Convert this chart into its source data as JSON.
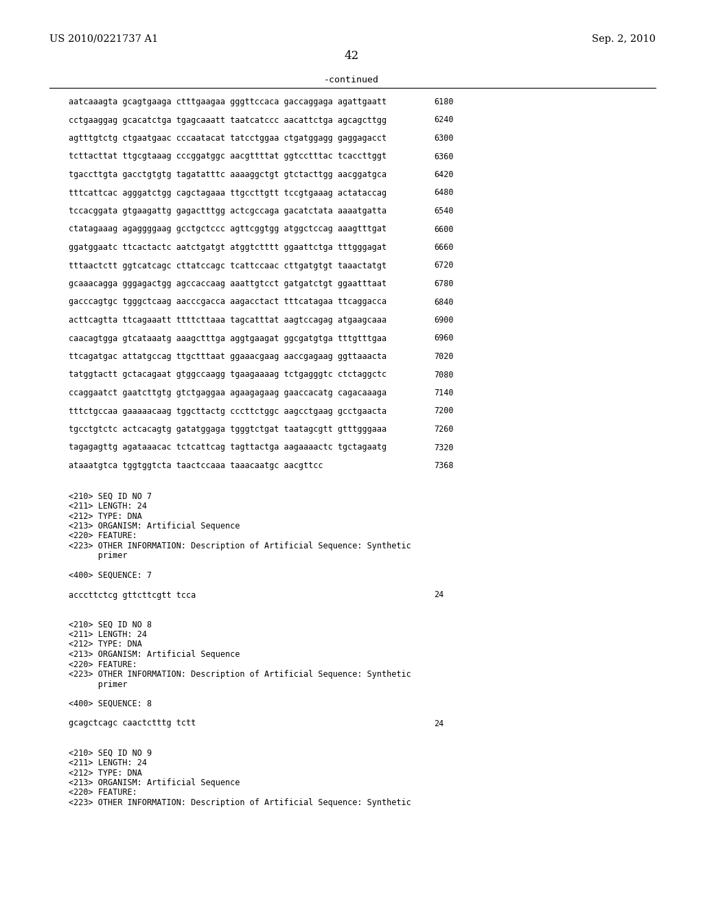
{
  "header_left": "US 2010/0221737 A1",
  "header_right": "Sep. 2, 2010",
  "page_number": "42",
  "continued_label": "-continued",
  "background_color": "#ffffff",
  "text_color": "#000000",
  "sequence_lines": [
    [
      "aatcaaagta gcagtgaaga ctttgaagaa gggttccaca gaccaggaga agattgaatt",
      "6180"
    ],
    [
      "cctgaaggag gcacatctga tgagcaaatt taatcatccc aacattctga agcagcttgg",
      "6240"
    ],
    [
      "agtttgtctg ctgaatgaac cccaatacat tatcctggaa ctgatggagg gaggagacct",
      "6300"
    ],
    [
      "tcttacttat ttgcgtaaag cccggatggc aacgttttat ggtcctttac tcaccttggt",
      "6360"
    ],
    [
      "tgaccttgta gacctgtgtg tagatatttc aaaaggctgt gtctacttgg aacggatgca",
      "6420"
    ],
    [
      "tttcattcac agggatctgg cagctagaaa ttgccttgtt tccgtgaaag actataccag",
      "6480"
    ],
    [
      "tccacggata gtgaagattg gagactttgg actcgccaga gacatctata aaaatgatta",
      "6540"
    ],
    [
      "ctatagaaag agaggggaag gcctgctccc agttcggtgg atggctccag aaagtttgat",
      "6600"
    ],
    [
      "ggatggaatc ttcactactc aatctgatgt atggtctttt ggaattctga tttgggagat",
      "6660"
    ],
    [
      "tttaactctt ggtcatcagc cttatccagc tcattccaac cttgatgtgt taaactatgt",
      "6720"
    ],
    [
      "gcaaacagga gggagactgg agccaccaag aaattgtcct gatgatctgt ggaatttaat",
      "6780"
    ],
    [
      "gacccagtgc tgggctcaag aacccgacca aagacctact tttcatagaa ttcaggacca",
      "6840"
    ],
    [
      "acttcagtta ttcagaaatt ttttcttaaa tagcatttat aagtccagag atgaagcaaa",
      "6900"
    ],
    [
      "caacagtgga gtcataaatg aaagctttga aggtgaagat ggcgatgtga tttgtttgaa",
      "6960"
    ],
    [
      "ttcagatgac attatgccag ttgctttaat ggaaacgaag aaccgagaag ggttaaacta",
      "7020"
    ],
    [
      "tatggtactt gctacagaat gtggccaagg tgaagaaaag tctgagggtc ctctaggctc",
      "7080"
    ],
    [
      "ccaggaatct gaatcttgtg gtctgaggaa agaagagaag gaaccacatg cagacaaaga",
      "7140"
    ],
    [
      "tttctgccaa gaaaaacaag tggcttactg cccttctggc aagcctgaag gcctgaacta",
      "7200"
    ],
    [
      "tgcctgtctc actcacagtg gatatggaga tgggtctgat taatagcgtt gtttgggaaa",
      "7260"
    ],
    [
      "tagagagttg agataaacac tctcattcag tagttactga aagaaaactc tgctagaatg",
      "7320"
    ],
    [
      "ataaatgtca tggtggtcta taactccaaa taaacaatgc aacgttcc",
      "7368"
    ]
  ],
  "seq7_meta": [
    "<210> SEQ ID NO 7",
    "<211> LENGTH: 24",
    "<212> TYPE: DNA",
    "<213> ORGANISM: Artificial Sequence",
    "<220> FEATURE:",
    "<223> OTHER INFORMATION: Description of Artificial Sequence: Synthetic",
    "      primer"
  ],
  "seq7_label": "<400> SEQUENCE: 7",
  "seq7_sequence": "acccttctcg gttcttcgtt tcca",
  "seq7_number": "24",
  "seq8_meta": [
    "<210> SEQ ID NO 8",
    "<211> LENGTH: 24",
    "<212> TYPE: DNA",
    "<213> ORGANISM: Artificial Sequence",
    "<220> FEATURE:",
    "<223> OTHER INFORMATION: Description of Artificial Sequence: Synthetic",
    "      primer"
  ],
  "seq8_label": "<400> SEQUENCE: 8",
  "seq8_sequence": "gcagctcagc caactctttg tctt",
  "seq8_number": "24",
  "seq9_meta": [
    "<210> SEQ ID NO 9",
    "<211> LENGTH: 24",
    "<212> TYPE: DNA",
    "<213> ORGANISM: Artificial Sequence",
    "<220> FEATURE:",
    "<223> OTHER INFORMATION: Description of Artificial Sequence: Synthetic"
  ]
}
